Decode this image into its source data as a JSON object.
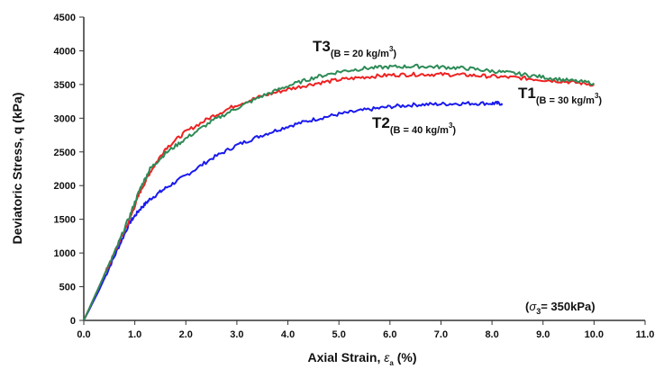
{
  "chart_data": {
    "type": "line",
    "xlabel_prefix": "Axial Strain, ",
    "xlabel_symbol": "ε",
    "xlabel_sub": "a",
    "xlabel_suffix": " (%)",
    "ylabel": "Deviatoric Stress, q (kPa)",
    "xlim": [
      0,
      11
    ],
    "ylim": [
      0,
      4500
    ],
    "x_ticks": [
      "0.0",
      "1.0",
      "2.0",
      "3.0",
      "4.0",
      "5.0",
      "6.0",
      "7.0",
      "8.0",
      "9.0",
      "10.0",
      "11.0"
    ],
    "y_ticks": [
      "0",
      "500",
      "1000",
      "1500",
      "2000",
      "2500",
      "3000",
      "3500",
      "4000",
      "4500"
    ],
    "grid": false,
    "annotation": {
      "prefix": "(",
      "symbol": "σ",
      "sub": "3",
      "suffix": "= 350kPa)"
    },
    "series": [
      {
        "name_main": "T1",
        "name_sub": "(B = 30 kg/m",
        "name_sup": "3",
        "name_close": ")",
        "color": "#ee2222",
        "x": [
          0,
          0.3,
          0.6,
          0.9,
          1.1,
          1.3,
          1.6,
          2.0,
          2.5,
          3.0,
          3.5,
          4.0,
          4.5,
          5.0,
          5.5,
          6.0,
          6.5,
          7.0,
          7.5,
          8.0,
          8.5,
          9.0,
          9.5,
          10.0
        ],
        "y": [
          0,
          500,
          1000,
          1500,
          1900,
          2200,
          2550,
          2800,
          3020,
          3200,
          3330,
          3430,
          3510,
          3570,
          3610,
          3640,
          3650,
          3650,
          3640,
          3620,
          3600,
          3570,
          3540,
          3500
        ]
      },
      {
        "name_main": "T2",
        "name_sub": "(B = 40 kg/m",
        "name_sup": "3",
        "name_close": ")",
        "color": "#1a1aee",
        "x": [
          0,
          0.3,
          0.6,
          0.9,
          1.1,
          1.3,
          1.6,
          2.0,
          2.5,
          3.0,
          3.5,
          4.0,
          4.5,
          5.0,
          5.5,
          6.0,
          6.5,
          7.0,
          7.5,
          8.0,
          8.2
        ],
        "y": [
          0,
          450,
          950,
          1450,
          1650,
          1800,
          1960,
          2150,
          2400,
          2600,
          2750,
          2880,
          2980,
          3060,
          3120,
          3170,
          3200,
          3210,
          3220,
          3220,
          3220
        ]
      },
      {
        "name_main": "T3",
        "name_sub": "(B = 20 kg/m",
        "name_sup": "3",
        "name_close": ")",
        "color": "#2e8b57",
        "x": [
          0,
          0.3,
          0.6,
          0.9,
          1.1,
          1.3,
          1.6,
          2.0,
          2.5,
          3.0,
          3.5,
          4.0,
          4.5,
          5.0,
          5.5,
          6.0,
          6.5,
          7.0,
          7.5,
          8.0,
          8.5,
          9.0,
          9.5,
          10.0
        ],
        "y": [
          0,
          500,
          1000,
          1550,
          1950,
          2250,
          2480,
          2700,
          2950,
          3150,
          3330,
          3480,
          3600,
          3690,
          3740,
          3760,
          3770,
          3760,
          3740,
          3700,
          3660,
          3610,
          3560,
          3520
        ]
      }
    ]
  }
}
